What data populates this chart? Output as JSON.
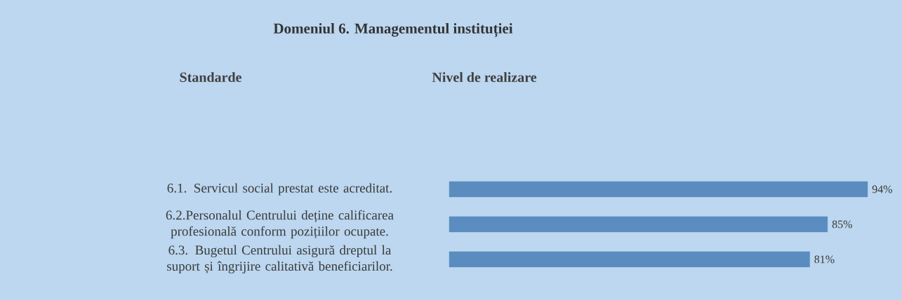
{
  "chart_data": {
    "type": "bar",
    "orientation": "horizontal",
    "title": "Domeniul 6. Managementul instituției",
    "annotations": [
      "Standarde",
      "Nivel de realizare"
    ],
    "categories": [
      "6.1. Servicul social prestat este acreditat.",
      "6.2.Personalul Centrului deține calificarea profesională conform pozițiilor ocupate.",
      "6.3. Bugetul Centrului asigură dreptul la suport și îngrijire calitativă beneficiarilor."
    ],
    "values": [
      94,
      85,
      81
    ],
    "value_labels": [
      "94%",
      "85%",
      "81%"
    ],
    "color": "#5a8cbf"
  }
}
